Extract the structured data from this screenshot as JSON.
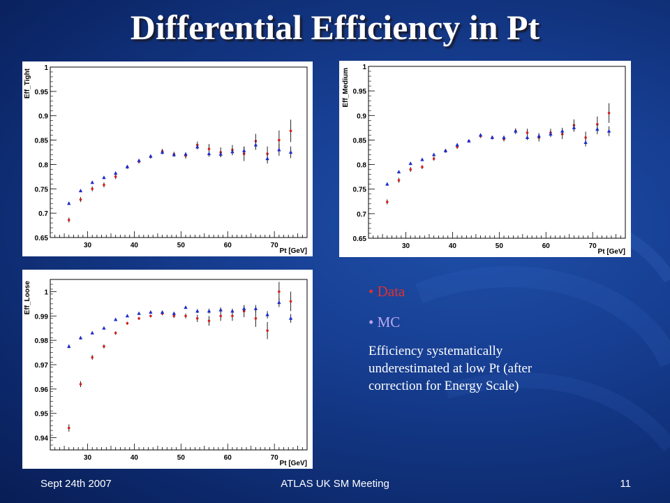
{
  "slide": {
    "title": "Differential Efficiency in Pt",
    "legend": {
      "data_label": "Data",
      "mc_label": "MC",
      "data_color": "#e03030",
      "mc_color": "#b8a8f0"
    },
    "note": "Efficiency systematically underestimated at low Pt (after correction for Energy Scale)",
    "footer": {
      "date": "Sept 24th 2007",
      "meeting": "ATLAS UK SM Meeting",
      "page": "11"
    }
  },
  "chart_data": [
    {
      "type": "scatter",
      "ylabel": "Eff_Tight",
      "xlabel": "Pt [GeV]",
      "xlim": [
        22,
        77
      ],
      "ylim": [
        0.65,
        1.0
      ],
      "xticks": [
        30,
        40,
        50,
        60,
        70
      ],
      "yticks": [
        0.65,
        0.7,
        0.75,
        0.8,
        0.85,
        0.9,
        0.95,
        1
      ],
      "ytick_labels": [
        "0.65",
        "0.7",
        "0.75",
        "0.8",
        "0.85",
        "0.9",
        "0.95",
        "1"
      ],
      "x": [
        26,
        28.5,
        31,
        33.5,
        36,
        38.5,
        41,
        43.5,
        46,
        48.5,
        51,
        53.5,
        56,
        58.5,
        61,
        63.5,
        66,
        68.5,
        71,
        73.5
      ],
      "series": [
        {
          "name": "Data",
          "color": "#d42020",
          "marker": "dot",
          "values": [
            0.686,
            0.728,
            0.75,
            0.758,
            0.775,
            0.795,
            0.806,
            0.816,
            0.827,
            0.821,
            0.818,
            0.84,
            0.832,
            0.825,
            0.83,
            0.822,
            0.848,
            0.822,
            0.85,
            0.869
          ],
          "errors": [
            0.005,
            0.005,
            0.005,
            0.005,
            0.005,
            0.004,
            0.004,
            0.004,
            0.005,
            0.005,
            0.006,
            0.007,
            0.01,
            0.01,
            0.01,
            0.015,
            0.015,
            0.015,
            0.02,
            0.023
          ]
        },
        {
          "name": "MC",
          "color": "#1c2cc8",
          "marker": "triangle",
          "values": [
            0.72,
            0.746,
            0.763,
            0.773,
            0.782,
            0.795,
            0.808,
            0.817,
            0.825,
            0.82,
            0.821,
            0.836,
            0.822,
            0.821,
            0.826,
            0.828,
            0.84,
            0.812,
            0.83,
            0.825
          ],
          "errors": [
            0.003,
            0.003,
            0.003,
            0.003,
            0.003,
            0.003,
            0.003,
            0.003,
            0.004,
            0.004,
            0.004,
            0.005,
            0.006,
            0.006,
            0.007,
            0.008,
            0.01,
            0.01,
            0.012,
            0.012
          ]
        }
      ]
    },
    {
      "type": "scatter",
      "ylabel": "Eff_Medium",
      "xlabel": "Pt [GeV]",
      "xlim": [
        22,
        77
      ],
      "ylim": [
        0.65,
        1.0
      ],
      "xticks": [
        30,
        40,
        50,
        60,
        70
      ],
      "yticks": [
        0.65,
        0.7,
        0.75,
        0.8,
        0.85,
        0.9,
        0.95,
        1
      ],
      "ytick_labels": [
        "0.65",
        "0.7",
        "0.75",
        "0.8",
        "0.85",
        "0.9",
        "0.95",
        "1"
      ],
      "x": [
        26,
        28.5,
        31,
        33.5,
        36,
        38.5,
        41,
        43.5,
        46,
        48.5,
        51,
        53.5,
        56,
        58.5,
        61,
        63.5,
        66,
        68.5,
        71,
        73.5
      ],
      "series": [
        {
          "name": "Data",
          "color": "#d42020",
          "marker": "dot",
          "values": [
            0.724,
            0.768,
            0.79,
            0.795,
            0.812,
            0.828,
            0.836,
            0.848,
            0.858,
            0.855,
            0.852,
            0.868,
            0.865,
            0.855,
            0.865,
            0.862,
            0.88,
            0.855,
            0.882,
            0.905
          ],
          "errors": [
            0.005,
            0.005,
            0.005,
            0.004,
            0.004,
            0.004,
            0.004,
            0.003,
            0.004,
            0.004,
            0.005,
            0.006,
            0.008,
            0.008,
            0.008,
            0.01,
            0.012,
            0.012,
            0.016,
            0.02
          ]
        },
        {
          "name": "MC",
          "color": "#1c2cc8",
          "marker": "triangle",
          "values": [
            0.76,
            0.785,
            0.802,
            0.81,
            0.82,
            0.828,
            0.84,
            0.848,
            0.86,
            0.855,
            0.855,
            0.868,
            0.855,
            0.858,
            0.862,
            0.868,
            0.875,
            0.845,
            0.872,
            0.868
          ],
          "errors": [
            0.003,
            0.003,
            0.003,
            0.003,
            0.003,
            0.003,
            0.003,
            0.003,
            0.003,
            0.003,
            0.004,
            0.004,
            0.005,
            0.006,
            0.006,
            0.007,
            0.008,
            0.008,
            0.01,
            0.01
          ]
        }
      ]
    },
    {
      "type": "scatter",
      "ylabel": "Eff_Loose",
      "xlabel": "Pt [GeV]",
      "xlim": [
        22,
        77
      ],
      "ylim": [
        0.935,
        1.005
      ],
      "xticks": [
        30,
        40,
        50,
        60,
        70
      ],
      "yticks": [
        0.94,
        0.95,
        0.96,
        0.97,
        0.98,
        0.99,
        1
      ],
      "ytick_labels": [
        "0.94",
        "0.95",
        "0.96",
        "0.97",
        "0.98",
        "0.99",
        "1"
      ],
      "x": [
        26,
        28.5,
        31,
        33.5,
        36,
        38.5,
        41,
        43.5,
        46,
        48.5,
        51,
        53.5,
        56,
        58.5,
        61,
        63.5,
        66,
        68.5,
        71,
        73.5
      ],
      "series": [
        {
          "name": "Data",
          "color": "#d42020",
          "marker": "dot",
          "values": [
            0.944,
            0.962,
            0.973,
            0.9775,
            0.983,
            0.987,
            0.989,
            0.99,
            0.991,
            0.99,
            0.99,
            0.989,
            0.988,
            0.99,
            0.99,
            0.992,
            0.989,
            0.984,
            1.0,
            0.996
          ],
          "errors": [
            0.0015,
            0.0012,
            0.001,
            0.0008,
            0.0007,
            0.0006,
            0.0006,
            0.0006,
            0.0007,
            0.0008,
            0.001,
            0.0015,
            0.002,
            0.002,
            0.002,
            0.0025,
            0.0035,
            0.0035,
            0.004,
            0.004
          ]
        },
        {
          "name": "MC",
          "color": "#1c2cc8",
          "marker": "triangle",
          "values": [
            0.9775,
            0.981,
            0.983,
            0.985,
            0.9885,
            0.99,
            0.991,
            0.9915,
            0.9915,
            0.991,
            0.9935,
            0.992,
            0.992,
            0.9925,
            0.992,
            0.993,
            0.993,
            0.9905,
            0.9955,
            0.989
          ],
          "errors": [
            0.0008,
            0.0007,
            0.0006,
            0.0005,
            0.0005,
            0.0004,
            0.0004,
            0.0004,
            0.0004,
            0.0005,
            0.0006,
            0.0008,
            0.001,
            0.001,
            0.001,
            0.0012,
            0.0015,
            0.0015,
            0.0018,
            0.0018
          ]
        }
      ]
    }
  ]
}
